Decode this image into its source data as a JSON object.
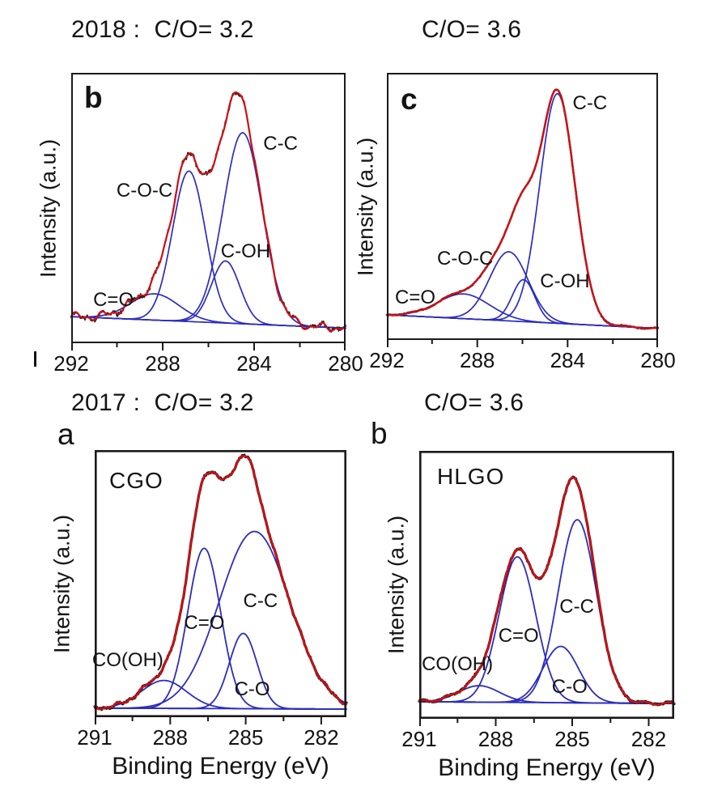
{
  "titles": {
    "row1_left": "2018 :  C/O= 3.2",
    "row1_right": "C/O= 3.6",
    "row2_left": "2017 :  C/O= 3.2",
    "row2_right": "C/O= 3.6"
  },
  "colors": {
    "raw_data": "#161616",
    "fit_envelope": "#cf1014",
    "fit_components": "#2b2cc0",
    "axis": "#1a1a1a",
    "text": "#131313"
  },
  "chart_data": [
    {
      "id": "top_left",
      "type": "line",
      "panel_letter": "b",
      "sample_label": "",
      "xlabel": "",
      "ylabel": "Intensity (a.u.)",
      "x_axis": {
        "unit": "eV",
        "range_eV": [
          292,
          280
        ],
        "major_ticks": [
          292,
          288,
          284,
          280
        ],
        "minor_ticks": [
          290,
          286,
          282
        ]
      },
      "y_axis": {
        "label": "Intensity (a.u.)",
        "units": "arbitrary",
        "ticks": []
      },
      "peaks": [
        {
          "label": "C=O",
          "center_eV": 288.35,
          "rel_amplitude": 0.11,
          "sigma_eV": 1.05,
          "label_fx": 0.08,
          "label_fy": 0.8
        },
        {
          "label": "C-O-C",
          "center_eV": 286.85,
          "rel_amplitude": 0.63,
          "sigma_eV": 0.72,
          "label_fx": 0.165,
          "label_fy": 0.395
        },
        {
          "label": "C-OH",
          "center_eV": 285.25,
          "rel_amplitude": 0.26,
          "sigma_eV": 0.62,
          "label_fx": 0.545,
          "label_fy": 0.62
        },
        {
          "label": "C-C",
          "center_eV": 284.5,
          "rel_amplitude": 0.8,
          "sigma_eV": 0.85,
          "label_fx": 0.7,
          "label_fy": 0.22
        }
      ],
      "baseline": {
        "left": 0.03,
        "right": -0.018
      },
      "noise": {
        "amplitude": 0.013,
        "seed": 11,
        "wobble": [
          [
            0.012,
            5.3,
            0.9
          ],
          [
            0.008,
            11.0,
            2.1
          ]
        ]
      }
    },
    {
      "id": "top_right",
      "type": "line",
      "panel_letter": "c",
      "sample_label": "",
      "xlabel": "",
      "ylabel": "Intensity (a.u.)",
      "x_axis": {
        "unit": "eV",
        "range_eV": [
          292,
          280
        ],
        "major_ticks": [
          292,
          288,
          284,
          280
        ],
        "minor_ticks": [
          290,
          286,
          282
        ]
      },
      "y_axis": {
        "label": "Intensity (a.u.)",
        "units": "arbitrary",
        "ticks": []
      },
      "peaks": [
        {
          "label": "C=O",
          "center_eV": 288.6,
          "rel_amplitude": 0.1,
          "sigma_eV": 1.15,
          "label_fx": 0.03,
          "label_fy": 0.8
        },
        {
          "label": "C-O-C",
          "center_eV": 286.6,
          "rel_amplitude": 0.28,
          "sigma_eV": 0.85,
          "label_fx": 0.185,
          "label_fy": 0.655
        },
        {
          "label": "C-OH",
          "center_eV": 285.95,
          "rel_amplitude": 0.17,
          "sigma_eV": 0.5,
          "label_fx": 0.565,
          "label_fy": 0.74
        },
        {
          "label": "C-C",
          "center_eV": 284.45,
          "rel_amplitude": 0.93,
          "sigma_eV": 0.78,
          "label_fx": 0.685,
          "label_fy": 0.072
        }
      ],
      "baseline": {
        "left": 0.02,
        "right": -0.035
      },
      "noise": {
        "amplitude": 0.003,
        "seed": 22,
        "wobble": [
          [
            0.003,
            4.0,
            0.5
          ]
        ]
      }
    },
    {
      "id": "bottom_left",
      "type": "line",
      "panel_letter": "a",
      "sample_label": "CGO",
      "xlabel": "Binding Energy (eV)",
      "ylabel": "Intensity (a.u.)",
      "x_axis": {
        "unit": "eV",
        "range_eV": [
          291,
          281
        ],
        "major_ticks": [
          291,
          288,
          285,
          282
        ],
        "minor_ticks": [
          289.5,
          286.5,
          283.5
        ]
      },
      "y_axis": {
        "label": "Intensity (a.u.)",
        "units": "arbitrary",
        "ticks": []
      },
      "peaks": [
        {
          "label": "CO(OH)",
          "center_eV": 288.25,
          "rel_amplitude": 0.115,
          "sigma_eV": 0.9,
          "label_fx": -0.01,
          "label_fy": 0.745
        },
        {
          "label": "C=O",
          "center_eV": 286.65,
          "rel_amplitude": 0.66,
          "sigma_eV": 0.65,
          "label_fx": 0.355,
          "label_fy": 0.605
        },
        {
          "label": "C-O",
          "center_eV": 285.1,
          "rel_amplitude": 0.31,
          "sigma_eV": 0.55,
          "label_fx": 0.555,
          "label_fy": 0.855
        },
        {
          "label": "C-C",
          "center_eV": 284.65,
          "rel_amplitude": 0.73,
          "sigma_eV": 1.4,
          "label_fx": 0.59,
          "label_fy": 0.525
        }
      ],
      "baseline": {
        "left": 0.004,
        "right": 0.0
      },
      "noise": {
        "amplitude": 0.005,
        "seed": 33,
        "wobble": [
          [
            0.006,
            6.0,
            1.5
          ],
          [
            0.004,
            13.0,
            0.3
          ]
        ]
      }
    },
    {
      "id": "bottom_right",
      "type": "line",
      "panel_letter": "b",
      "sample_label": "HLGO",
      "xlabel": "Binding Energy (eV)",
      "ylabel": "Intensity (a.u.)",
      "x_axis": {
        "unit": "eV",
        "range_eV": [
          291,
          281
        ],
        "major_ticks": [
          291,
          288,
          285,
          282
        ],
        "minor_ticks": [
          289.5,
          286.5,
          283.5
        ]
      },
      "y_axis": {
        "label": "Intensity (a.u.)",
        "units": "arbitrary",
        "ticks": []
      },
      "peaks": [
        {
          "label": "CO(OH)",
          "center_eV": 288.65,
          "rel_amplitude": 0.07,
          "sigma_eV": 0.8,
          "label_fx": 0.01,
          "label_fy": 0.755
        },
        {
          "label": "C=O",
          "center_eV": 287.15,
          "rel_amplitude": 0.62,
          "sigma_eV": 0.72,
          "label_fx": 0.31,
          "label_fy": 0.65
        },
        {
          "label": "C-O",
          "center_eV": 285.45,
          "rel_amplitude": 0.24,
          "sigma_eV": 0.7,
          "label_fx": 0.52,
          "label_fy": 0.84
        },
        {
          "label": "C-C",
          "center_eV": 284.8,
          "rel_amplitude": 0.78,
          "sigma_eV": 0.75,
          "label_fx": 0.55,
          "label_fy": 0.54
        }
      ],
      "baseline": {
        "left": 0.004,
        "right": -0.004
      },
      "noise": {
        "amplitude": 0.005,
        "seed": 44,
        "wobble": [
          [
            0.005,
            6.5,
            2.2
          ]
        ]
      }
    }
  ]
}
